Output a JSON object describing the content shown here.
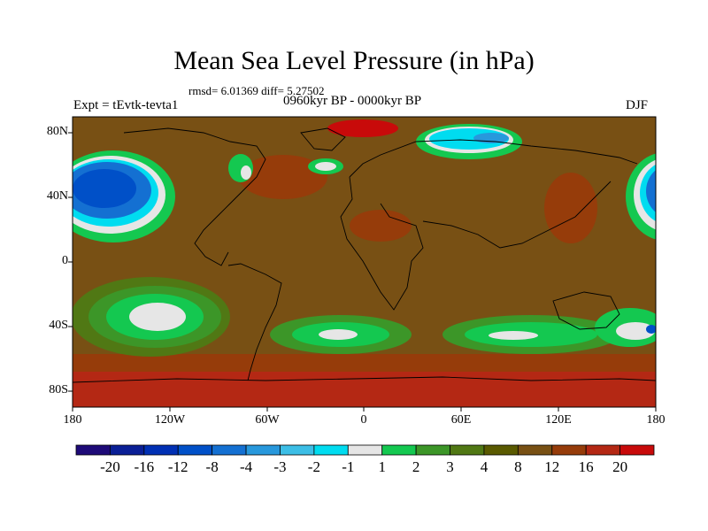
{
  "title": "Mean Sea Level Pressure (in hPa)",
  "stats": "rmsd= 6.01369 diff= 5.27502",
  "left_label": "Expt = tEvtk-tevta1",
  "center_label": "0960kyr BP - 0000kyr BP",
  "right_label": "DJF",
  "lat_ticks": [
    "80N",
    "40N",
    "0",
    "40S",
    "80S"
  ],
  "lon_ticks": [
    "180",
    "120W",
    "60W",
    "0",
    "60E",
    "120E",
    "180"
  ],
  "colorbar": {
    "labels": [
      "-20",
      "-16",
      "-12",
      "-8",
      "-4",
      "-3",
      "-2",
      "-1",
      "1",
      "2",
      "3",
      "4",
      "8",
      "12",
      "16",
      "20"
    ],
    "colors": [
      "#1e0a78",
      "#0a1f96",
      "#0030b4",
      "#0050c8",
      "#1470d2",
      "#2898dc",
      "#3cbee6",
      "#00dcf0",
      "#e6e6e6",
      "#14c850",
      "#3c9628",
      "#507814",
      "#5a5a00",
      "#785014",
      "#963c0a",
      "#b42814",
      "#c80a0a"
    ]
  },
  "colors": {
    "background_field": "#785014",
    "ocean_high": "#963c0a",
    "low_green": "#14c850",
    "low_lightgreen": "#3c9628",
    "low_white": "#e6e6e6",
    "low_blue": "#1470d2",
    "deep_blue": "#0a1f96"
  }
}
